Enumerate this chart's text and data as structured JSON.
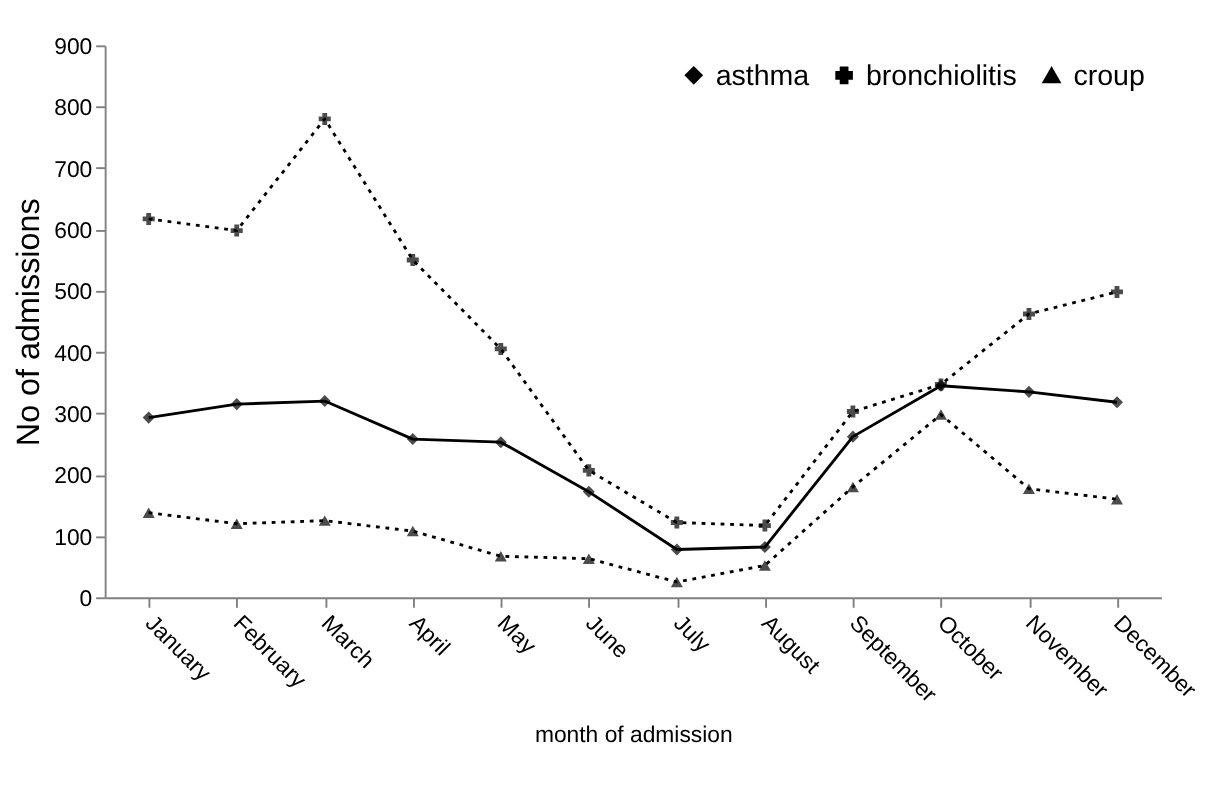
{
  "chart_data": {
    "type": "line",
    "xlabel": "month of admission",
    "ylabel": "No of admissions",
    "categories": [
      "January",
      "February",
      "March",
      "April",
      "May",
      "June",
      "July",
      "August",
      "September",
      "October",
      "November",
      "December"
    ],
    "ylim": [
      0,
      900
    ],
    "yticks": [
      0,
      100,
      200,
      300,
      400,
      500,
      600,
      700,
      800,
      900
    ],
    "grid": false,
    "legend": "top right",
    "series": [
      {
        "name": "asthma",
        "color": "#000000",
        "marker": "diamond",
        "line_style": "solid",
        "values": [
          293,
          315,
          320,
          258,
          253,
          172,
          78,
          82,
          262,
          345,
          335,
          318
        ]
      },
      {
        "name": "bronchiolitis",
        "color": "#000000",
        "marker": "cross",
        "line_style": "dotted",
        "values": [
          617,
          598,
          780,
          550,
          405,
          207,
          122,
          117,
          303,
          347,
          462,
          498
        ]
      },
      {
        "name": "croup",
        "color": "#000000",
        "marker": "triangle",
        "line_style": "dotted",
        "values": [
          138,
          120,
          125,
          108,
          67,
          63,
          25,
          52,
          180,
          298,
          177,
          160
        ]
      }
    ]
  }
}
